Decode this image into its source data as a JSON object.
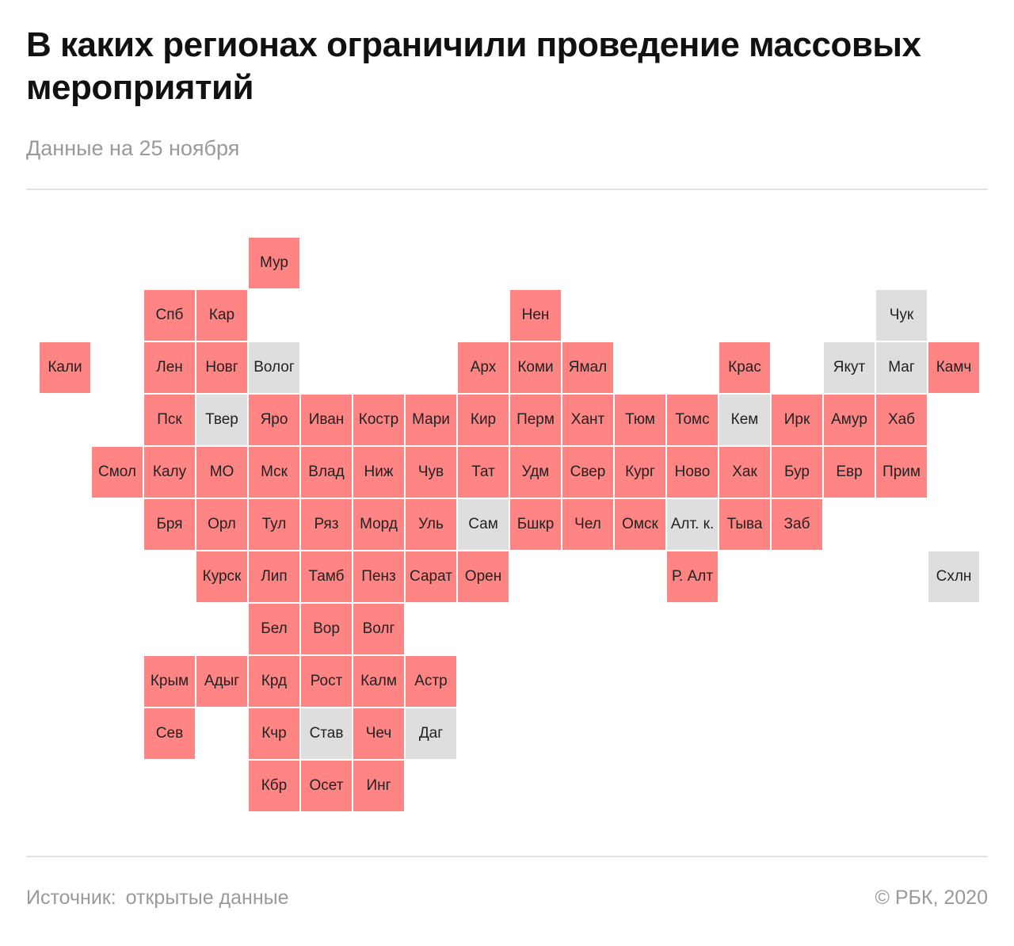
{
  "title": "В каких регионах ограничили проведение массовых мероприятий",
  "subtitle": "Данные на 25 ноября",
  "footer": {
    "source_label": "Источник:",
    "source_value": "открытые данные",
    "credit": "©  РБК, 2020"
  },
  "colors": {
    "restricted": "#ff8585",
    "other": "#dedede"
  },
  "regions": [
    {
      "label": "Мур",
      "col": 4,
      "row": 0,
      "status": "restricted"
    },
    {
      "label": "Спб",
      "col": 2,
      "row": 1,
      "status": "restricted"
    },
    {
      "label": "Кар",
      "col": 3,
      "row": 1,
      "status": "restricted"
    },
    {
      "label": "Нен",
      "col": 9,
      "row": 1,
      "status": "restricted"
    },
    {
      "label": "Чук",
      "col": 16,
      "row": 1,
      "status": "other"
    },
    {
      "label": "Кали",
      "col": 0,
      "row": 2,
      "status": "restricted"
    },
    {
      "label": "Лен",
      "col": 2,
      "row": 2,
      "status": "restricted"
    },
    {
      "label": "Новг",
      "col": 3,
      "row": 2,
      "status": "restricted"
    },
    {
      "label": "Волог",
      "col": 4,
      "row": 2,
      "status": "other"
    },
    {
      "label": "Арх",
      "col": 8,
      "row": 2,
      "status": "restricted"
    },
    {
      "label": "Коми",
      "col": 9,
      "row": 2,
      "status": "restricted"
    },
    {
      "label": "Ямал",
      "col": 10,
      "row": 2,
      "status": "restricted"
    },
    {
      "label": "Крас",
      "col": 13,
      "row": 2,
      "status": "restricted"
    },
    {
      "label": "Якут",
      "col": 15,
      "row": 2,
      "status": "other"
    },
    {
      "label": "Маг",
      "col": 16,
      "row": 2,
      "status": "other"
    },
    {
      "label": "Камч",
      "col": 17,
      "row": 2,
      "status": "restricted"
    },
    {
      "label": "Пск",
      "col": 2,
      "row": 3,
      "status": "restricted"
    },
    {
      "label": "Твер",
      "col": 3,
      "row": 3,
      "status": "other"
    },
    {
      "label": "Яро",
      "col": 4,
      "row": 3,
      "status": "restricted"
    },
    {
      "label": "Иван",
      "col": 5,
      "row": 3,
      "status": "restricted"
    },
    {
      "label": "Костр",
      "col": 6,
      "row": 3,
      "status": "restricted"
    },
    {
      "label": "Мари",
      "col": 7,
      "row": 3,
      "status": "restricted"
    },
    {
      "label": "Кир",
      "col": 8,
      "row": 3,
      "status": "restricted"
    },
    {
      "label": "Перм",
      "col": 9,
      "row": 3,
      "status": "restricted"
    },
    {
      "label": "Хант",
      "col": 10,
      "row": 3,
      "status": "restricted"
    },
    {
      "label": "Тюм",
      "col": 11,
      "row": 3,
      "status": "restricted"
    },
    {
      "label": "Томс",
      "col": 12,
      "row": 3,
      "status": "restricted"
    },
    {
      "label": "Кем",
      "col": 13,
      "row": 3,
      "status": "other"
    },
    {
      "label": "Ирк",
      "col": 14,
      "row": 3,
      "status": "restricted"
    },
    {
      "label": "Амур",
      "col": 15,
      "row": 3,
      "status": "restricted"
    },
    {
      "label": "Хаб",
      "col": 16,
      "row": 3,
      "status": "restricted"
    },
    {
      "label": "Смол",
      "col": 1,
      "row": 4,
      "status": "restricted"
    },
    {
      "label": "Калу",
      "col": 2,
      "row": 4,
      "status": "restricted"
    },
    {
      "label": "МО",
      "col": 3,
      "row": 4,
      "status": "restricted"
    },
    {
      "label": "Мск",
      "col": 4,
      "row": 4,
      "status": "restricted"
    },
    {
      "label": "Влад",
      "col": 5,
      "row": 4,
      "status": "restricted"
    },
    {
      "label": "Ниж",
      "col": 6,
      "row": 4,
      "status": "restricted"
    },
    {
      "label": "Чув",
      "col": 7,
      "row": 4,
      "status": "restricted"
    },
    {
      "label": "Тат",
      "col": 8,
      "row": 4,
      "status": "restricted"
    },
    {
      "label": "Удм",
      "col": 9,
      "row": 4,
      "status": "restricted"
    },
    {
      "label": "Свер",
      "col": 10,
      "row": 4,
      "status": "restricted"
    },
    {
      "label": "Кург",
      "col": 11,
      "row": 4,
      "status": "restricted"
    },
    {
      "label": "Ново",
      "col": 12,
      "row": 4,
      "status": "restricted"
    },
    {
      "label": "Хак",
      "col": 13,
      "row": 4,
      "status": "restricted"
    },
    {
      "label": "Бур",
      "col": 14,
      "row": 4,
      "status": "restricted"
    },
    {
      "label": "Евр",
      "col": 15,
      "row": 4,
      "status": "restricted"
    },
    {
      "label": "Прим",
      "col": 16,
      "row": 4,
      "status": "restricted"
    },
    {
      "label": "Бря",
      "col": 2,
      "row": 5,
      "status": "restricted"
    },
    {
      "label": "Орл",
      "col": 3,
      "row": 5,
      "status": "restricted"
    },
    {
      "label": "Тул",
      "col": 4,
      "row": 5,
      "status": "restricted"
    },
    {
      "label": "Ряз",
      "col": 5,
      "row": 5,
      "status": "restricted"
    },
    {
      "label": "Морд",
      "col": 6,
      "row": 5,
      "status": "restricted"
    },
    {
      "label": "Уль",
      "col": 7,
      "row": 5,
      "status": "restricted"
    },
    {
      "label": "Сам",
      "col": 8,
      "row": 5,
      "status": "other"
    },
    {
      "label": "Бшкр",
      "col": 9,
      "row": 5,
      "status": "restricted"
    },
    {
      "label": "Чел",
      "col": 10,
      "row": 5,
      "status": "restricted"
    },
    {
      "label": "Омск",
      "col": 11,
      "row": 5,
      "status": "restricted"
    },
    {
      "label": "Алт. к.",
      "col": 12,
      "row": 5,
      "status": "other"
    },
    {
      "label": "Тыва",
      "col": 13,
      "row": 5,
      "status": "restricted"
    },
    {
      "label": "Заб",
      "col": 14,
      "row": 5,
      "status": "restricted"
    },
    {
      "label": "Курск",
      "col": 3,
      "row": 6,
      "status": "restricted"
    },
    {
      "label": "Лип",
      "col": 4,
      "row": 6,
      "status": "restricted"
    },
    {
      "label": "Тамб",
      "col": 5,
      "row": 6,
      "status": "restricted"
    },
    {
      "label": "Пенз",
      "col": 6,
      "row": 6,
      "status": "restricted"
    },
    {
      "label": "Сарат",
      "col": 7,
      "row": 6,
      "status": "restricted"
    },
    {
      "label": "Орен",
      "col": 8,
      "row": 6,
      "status": "restricted"
    },
    {
      "label": "Р. Алт",
      "col": 12,
      "row": 6,
      "status": "restricted"
    },
    {
      "label": "Схлн",
      "col": 17,
      "row": 6,
      "status": "other"
    },
    {
      "label": "Бел",
      "col": 4,
      "row": 7,
      "status": "restricted"
    },
    {
      "label": "Вор",
      "col": 5,
      "row": 7,
      "status": "restricted"
    },
    {
      "label": "Волг",
      "col": 6,
      "row": 7,
      "status": "restricted"
    },
    {
      "label": "Крым",
      "col": 2,
      "row": 8,
      "status": "restricted"
    },
    {
      "label": "Адыг",
      "col": 3,
      "row": 8,
      "status": "restricted"
    },
    {
      "label": "Крд",
      "col": 4,
      "row": 8,
      "status": "restricted"
    },
    {
      "label": "Рост",
      "col": 5,
      "row": 8,
      "status": "restricted"
    },
    {
      "label": "Калм",
      "col": 6,
      "row": 8,
      "status": "restricted"
    },
    {
      "label": "Астр",
      "col": 7,
      "row": 8,
      "status": "restricted"
    },
    {
      "label": "Сев",
      "col": 2,
      "row": 9,
      "status": "restricted"
    },
    {
      "label": "Кчр",
      "col": 4,
      "row": 9,
      "status": "restricted"
    },
    {
      "label": "Став",
      "col": 5,
      "row": 9,
      "status": "other"
    },
    {
      "label": "Чеч",
      "col": 6,
      "row": 9,
      "status": "restricted"
    },
    {
      "label": "Даг",
      "col": 7,
      "row": 9,
      "status": "other"
    },
    {
      "label": "Кбр",
      "col": 4,
      "row": 10,
      "status": "restricted"
    },
    {
      "label": "Осет",
      "col": 5,
      "row": 10,
      "status": "restricted"
    },
    {
      "label": "Инг",
      "col": 6,
      "row": 10,
      "status": "restricted"
    }
  ]
}
